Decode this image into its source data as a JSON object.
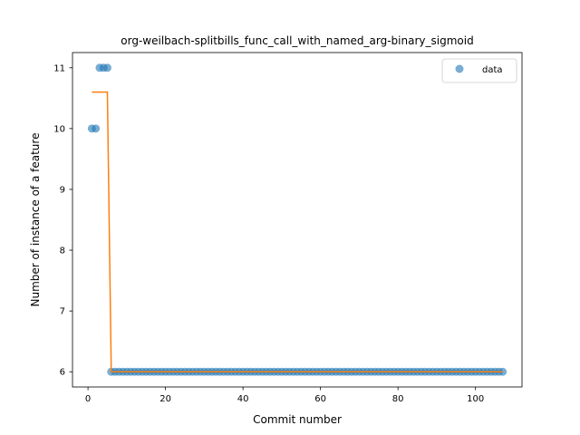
{
  "chart_data": {
    "type": "scatter",
    "title": "org-weilbach-splitbills_func_call_with_named_arg-binary_sigmoid",
    "xlabel": "Commit number",
    "ylabel": "Number of instance of a feature",
    "xlim": [
      -4,
      112
    ],
    "ylim": [
      5.75,
      11.25
    ],
    "xticks": [
      0,
      20,
      40,
      60,
      80,
      100
    ],
    "yticks": [
      6,
      7,
      8,
      9,
      10,
      11
    ],
    "grid": false,
    "legend": {
      "placement": "top-right",
      "entries": [
        "data"
      ]
    },
    "series": [
      {
        "name": "data",
        "kind": "scatter",
        "color": "#1f77b4",
        "points": [
          [
            1,
            10
          ],
          [
            2,
            10
          ],
          [
            3,
            11
          ],
          [
            4,
            11
          ],
          [
            5,
            11
          ],
          [
            6,
            6
          ],
          [
            7,
            6
          ],
          [
            8,
            6
          ],
          [
            9,
            6
          ],
          [
            10,
            6
          ],
          [
            11,
            6
          ],
          [
            12,
            6
          ],
          [
            13,
            6
          ],
          [
            14,
            6
          ],
          [
            15,
            6
          ],
          [
            16,
            6
          ],
          [
            17,
            6
          ],
          [
            18,
            6
          ],
          [
            19,
            6
          ],
          [
            20,
            6
          ],
          [
            21,
            6
          ],
          [
            22,
            6
          ],
          [
            23,
            6
          ],
          [
            24,
            6
          ],
          [
            25,
            6
          ],
          [
            26,
            6
          ],
          [
            27,
            6
          ],
          [
            28,
            6
          ],
          [
            29,
            6
          ],
          [
            30,
            6
          ],
          [
            31,
            6
          ],
          [
            32,
            6
          ],
          [
            33,
            6
          ],
          [
            34,
            6
          ],
          [
            35,
            6
          ],
          [
            36,
            6
          ],
          [
            37,
            6
          ],
          [
            38,
            6
          ],
          [
            39,
            6
          ],
          [
            40,
            6
          ],
          [
            41,
            6
          ],
          [
            42,
            6
          ],
          [
            43,
            6
          ],
          [
            44,
            6
          ],
          [
            45,
            6
          ],
          [
            46,
            6
          ],
          [
            47,
            6
          ],
          [
            48,
            6
          ],
          [
            49,
            6
          ],
          [
            50,
            6
          ],
          [
            51,
            6
          ],
          [
            52,
            6
          ],
          [
            53,
            6
          ],
          [
            54,
            6
          ],
          [
            55,
            6
          ],
          [
            56,
            6
          ],
          [
            57,
            6
          ],
          [
            58,
            6
          ],
          [
            59,
            6
          ],
          [
            60,
            6
          ],
          [
            61,
            6
          ],
          [
            62,
            6
          ],
          [
            63,
            6
          ],
          [
            64,
            6
          ],
          [
            65,
            6
          ],
          [
            66,
            6
          ],
          [
            67,
            6
          ],
          [
            68,
            6
          ],
          [
            69,
            6
          ],
          [
            70,
            6
          ],
          [
            71,
            6
          ],
          [
            72,
            6
          ],
          [
            73,
            6
          ],
          [
            74,
            6
          ],
          [
            75,
            6
          ],
          [
            76,
            6
          ],
          [
            77,
            6
          ],
          [
            78,
            6
          ],
          [
            79,
            6
          ],
          [
            80,
            6
          ],
          [
            81,
            6
          ],
          [
            82,
            6
          ],
          [
            83,
            6
          ],
          [
            84,
            6
          ],
          [
            85,
            6
          ],
          [
            86,
            6
          ],
          [
            87,
            6
          ],
          [
            88,
            6
          ],
          [
            89,
            6
          ],
          [
            90,
            6
          ],
          [
            91,
            6
          ],
          [
            92,
            6
          ],
          [
            93,
            6
          ],
          [
            94,
            6
          ],
          [
            95,
            6
          ],
          [
            96,
            6
          ],
          [
            97,
            6
          ],
          [
            98,
            6
          ],
          [
            99,
            6
          ],
          [
            100,
            6
          ],
          [
            101,
            6
          ],
          [
            102,
            6
          ],
          [
            103,
            6
          ],
          [
            104,
            6
          ],
          [
            105,
            6
          ],
          [
            106,
            6
          ],
          [
            107,
            6
          ]
        ]
      },
      {
        "kind": "line",
        "color": "#ff7f0e",
        "points": [
          [
            1,
            10.6
          ],
          [
            5,
            10.6
          ],
          [
            6,
            6
          ],
          [
            107,
            6
          ]
        ]
      }
    ]
  }
}
